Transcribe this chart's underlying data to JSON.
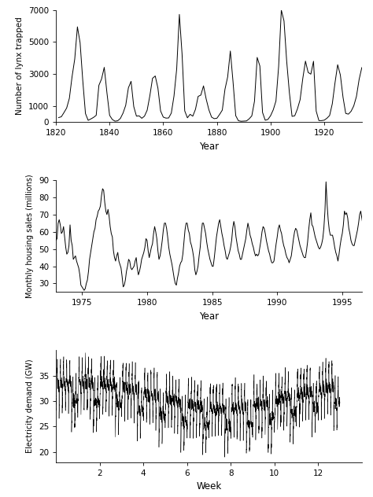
{
  "lynx": {
    "years": [
      1821,
      1822,
      1823,
      1824,
      1825,
      1826,
      1827,
      1828,
      1829,
      1830,
      1831,
      1832,
      1833,
      1834,
      1835,
      1836,
      1837,
      1838,
      1839,
      1840,
      1841,
      1842,
      1843,
      1844,
      1845,
      1846,
      1847,
      1848,
      1849,
      1850,
      1851,
      1852,
      1853,
      1854,
      1855,
      1856,
      1857,
      1858,
      1859,
      1860,
      1861,
      1862,
      1863,
      1864,
      1865,
      1866,
      1867,
      1868,
      1869,
      1870,
      1871,
      1872,
      1873,
      1874,
      1875,
      1876,
      1877,
      1878,
      1879,
      1880,
      1881,
      1882,
      1883,
      1884,
      1885,
      1886,
      1887,
      1888,
      1889,
      1890,
      1891,
      1892,
      1893,
      1894,
      1895,
      1896,
      1897,
      1898,
      1899,
      1900,
      1901,
      1902,
      1903,
      1904,
      1905,
      1906,
      1907,
      1908,
      1909,
      1910,
      1911,
      1912,
      1913,
      1914,
      1915,
      1916,
      1917,
      1918,
      1919,
      1920,
      1921,
      1922,
      1923,
      1924,
      1925,
      1926,
      1927,
      1928,
      1929,
      1930,
      1931,
      1932,
      1933,
      1934
    ],
    "values": [
      269,
      321,
      585,
      871,
      1475,
      2821,
      3928,
      5943,
      4950,
      2577,
      523,
      98,
      184,
      279,
      409,
      2285,
      2685,
      3409,
      1824,
      409,
      151,
      45,
      68,
      213,
      546,
      1033,
      2129,
      2536,
      957,
      361,
      377,
      225,
      360,
      731,
      1638,
      2725,
      2871,
      2119,
      684,
      299,
      236,
      245,
      552,
      1623,
      3311,
      6721,
      4254,
      687,
      255,
      473,
      358,
      784,
      1594,
      1676,
      2251,
      1426,
      756,
      299,
      201,
      229,
      469,
      736,
      2042,
      2811,
      4431,
      2511,
      389,
      73,
      39,
      49,
      59,
      188,
      377,
      1292,
      4031,
      3495,
      587,
      105,
      153,
      387,
      758,
      1307,
      3465,
      6991,
      6313,
      3794,
      1836,
      345,
      382,
      808,
      1388,
      2713,
      3800,
      3091,
      2985,
      3790,
      674,
      81,
      80,
      108,
      229,
      399,
      1132,
      2432,
      3574,
      2935,
      1537,
      529,
      485,
      662,
      1000,
      1590,
      2657,
      3396
    ],
    "xlabel": "Year",
    "ylabel": "Number of lynx trapped",
    "ylim": [
      0,
      7000
    ],
    "yticks": [
      0,
      1000,
      3000,
      5000,
      7000
    ],
    "xlim": [
      1820,
      1934
    ],
    "xticks": [
      1820,
      1840,
      1860,
      1880,
      1900,
      1920
    ]
  },
  "housing": {
    "ylabel": "Monthly housing sales (millions)",
    "xlabel": "Year",
    "ylim": [
      25,
      90
    ],
    "yticks": [
      30,
      40,
      50,
      60,
      70,
      80,
      90
    ],
    "xticks": [
      1975,
      1980,
      1985,
      1990,
      1995
    ],
    "xlim": [
      1973.0,
      1996.5
    ],
    "start_year": 1973,
    "start_month": 1,
    "values": [
      55,
      56,
      65,
      67,
      64,
      59,
      60,
      63,
      57,
      51,
      47,
      48,
      52,
      64,
      55,
      52,
      44,
      45,
      46,
      43,
      41,
      39,
      35,
      29,
      28,
      27,
      26,
      27,
      30,
      32,
      37,
      44,
      48,
      52,
      56,
      60,
      62,
      67,
      69,
      72,
      73,
      75,
      81,
      85,
      84,
      77,
      72,
      70,
      73,
      69,
      63,
      59,
      57,
      49,
      45,
      43,
      46,
      48,
      43,
      41,
      39,
      34,
      28,
      29,
      32,
      37,
      40,
      44,
      43,
      39,
      38,
      39,
      40,
      43,
      45,
      39,
      35,
      37,
      40,
      44,
      46,
      48,
      51,
      56,
      55,
      49,
      45,
      48,
      51,
      53,
      59,
      63,
      60,
      56,
      49,
      44,
      46,
      50,
      55,
      61,
      65,
      65,
      62,
      57,
      51,
      47,
      44,
      41,
      37,
      33,
      30,
      29,
      33,
      36,
      40,
      42,
      43,
      47,
      54,
      61,
      65,
      65,
      61,
      59,
      54,
      52,
      49,
      45,
      38,
      35,
      37,
      40,
      46,
      51,
      59,
      65,
      65,
      62,
      59,
      54,
      50,
      47,
      44,
      42,
      40,
      40,
      45,
      51,
      57,
      61,
      65,
      67,
      63,
      59,
      56,
      52,
      49,
      45,
      44,
      46,
      48,
      51,
      55,
      62,
      66,
      63,
      57,
      53,
      49,
      47,
      44,
      44,
      47,
      50,
      53,
      56,
      61,
      65,
      62,
      58,
      56,
      53,
      51,
      48,
      46,
      47,
      46,
      47,
      51,
      55,
      60,
      63,
      62,
      59,
      55,
      52,
      49,
      47,
      44,
      42,
      42,
      43,
      48,
      53,
      57,
      62,
      64,
      61,
      59,
      55,
      52,
      50,
      47,
      45,
      44,
      42,
      44,
      46,
      51,
      56,
      60,
      62,
      61,
      58,
      55,
      52,
      50,
      48,
      46,
      45,
      45,
      49,
      54,
      61,
      67,
      71,
      64,
      63,
      60,
      57,
      55,
      53,
      51,
      50,
      51,
      53,
      56,
      62,
      72,
      89,
      76,
      67,
      61,
      58,
      58,
      58,
      55,
      51,
      48,
      46,
      43,
      47,
      52,
      56,
      59,
      64,
      72,
      70,
      71,
      68,
      62,
      59,
      55,
      53,
      52,
      52,
      55,
      58,
      61,
      65,
      70,
      72,
      68,
      64,
      62,
      58,
      55,
      52,
      51,
      50,
      50,
      54,
      57,
      60
    ]
  },
  "elec": {
    "ylabel": "Electricity demand (GW)",
    "xlabel": "Week",
    "ylim": [
      18,
      40
    ],
    "yticks": [
      20,
      25,
      30,
      35
    ],
    "xticks": [
      2,
      4,
      6,
      8,
      10,
      12
    ],
    "xlim": [
      0,
      14
    ],
    "n_halfhours_per_day": 48,
    "n_days": 91
  },
  "fig_bg": "white",
  "plot_bg": "white",
  "line_color": "black",
  "tick_labelsize": 7.5,
  "axis_labelsize": 8.5,
  "label_fontsize_ylabel": 7.5
}
